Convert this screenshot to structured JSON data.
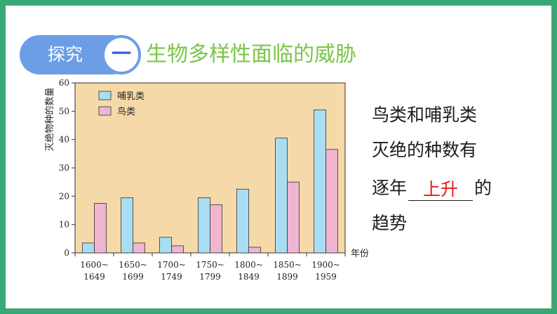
{
  "section": {
    "badge_label": "探究",
    "badge_number": "一",
    "title": "生物多样性面临的威胁"
  },
  "side_text": {
    "line1": "鸟类和哺乳类",
    "line2": "灭绝的种数有",
    "line3_prefix": "逐年",
    "answer": "上升",
    "line3_suffix": "的",
    "line4": "趋势"
  },
  "colors": {
    "background_border": "#3aa874",
    "badge": "#6c9ee6",
    "title": "#7cc54a",
    "answer": "#e21c1c",
    "plot_bg": "#f5d9a8",
    "mammal": "#a9ddf2",
    "bird": "#efb5d1"
  },
  "chart_data": {
    "type": "bar",
    "categories": [
      "1600~1649",
      "1650~1699",
      "1700~1749",
      "1750~1799",
      "1800~1849",
      "1850~1899",
      "1900~1959"
    ],
    "category_lines": [
      [
        "1600~",
        "1649"
      ],
      [
        "1650~",
        "1699"
      ],
      [
        "1700~",
        "1749"
      ],
      [
        "1750~",
        "1799"
      ],
      [
        "1800~",
        "1849"
      ],
      [
        "1850~",
        "1899"
      ],
      [
        "1900~",
        "1959"
      ]
    ],
    "series": [
      {
        "name": "哺乳类",
        "values": [
          3.5,
          19.5,
          5.5,
          19.5,
          22.5,
          40.5,
          50.5
        ]
      },
      {
        "name": "鸟类",
        "values": [
          17.5,
          3.5,
          2.5,
          17,
          2,
          25,
          36.5
        ]
      }
    ],
    "ylabel": "灭绝物种的数量",
    "xlabel": "年份",
    "ylim": [
      0,
      60
    ],
    "yticks": [
      0,
      10,
      20,
      30,
      40,
      50,
      60
    ],
    "legend": "top-left",
    "grid": false
  }
}
